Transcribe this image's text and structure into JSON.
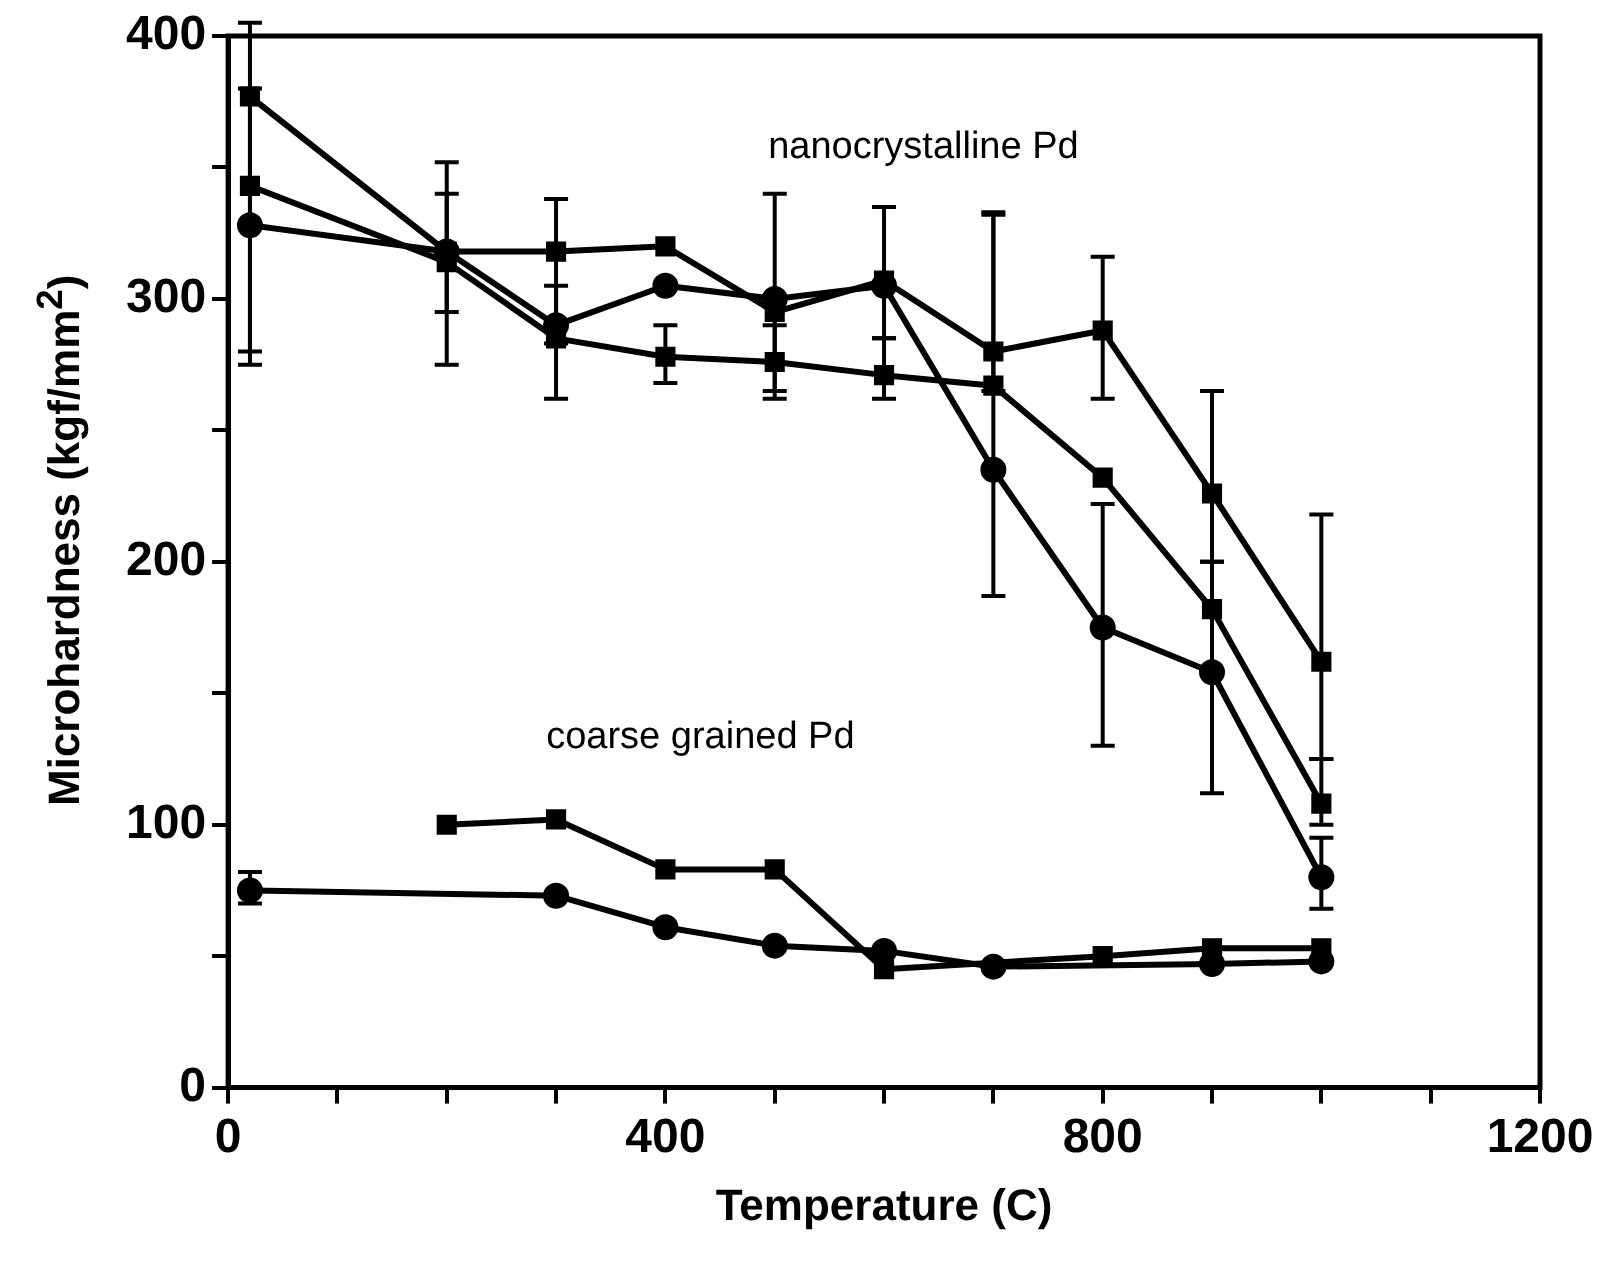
{
  "chart_data": {
    "type": "line",
    "xlabel": "Temperature (C)",
    "ylabel": "Microhardness (kgf/mm$^{2}$)",
    "xlim": [
      0,
      1200
    ],
    "xticks": [
      0,
      {
        "value": 100,
        "label": null
      },
      {
        "value": 200,
        "label": null
      },
      {
        "value": 300,
        "label": null
      },
      400,
      {
        "value": 500,
        "label": null
      },
      {
        "value": 600,
        "label": null
      },
      {
        "value": 700,
        "label": null
      },
      800,
      {
        "value": 900,
        "label": null
      },
      {
        "value": 1000,
        "label": null
      },
      {
        "value": 1100,
        "label": null
      },
      1200
    ],
    "ylim": [
      0,
      400
    ],
    "yticks": [
      0,
      {
        "value": 50,
        "label": null
      },
      100,
      {
        "value": 150,
        "label": null
      },
      200,
      {
        "value": 250,
        "label": null
      },
      300,
      {
        "value": 350,
        "label": null
      },
      400
    ],
    "grid": false,
    "legend": false,
    "line_style": "solid",
    "series": [
      {
        "color": "#000000",
        "marker": "square",
        "x": [
          20,
          200,
          300,
          400,
          500,
          600,
          700,
          800,
          900,
          1000
        ],
        "values": [
          377,
          318,
          318,
          320,
          295,
          307,
          280,
          288,
          226,
          162
        ],
        "errors": [
          [
            280,
            405
          ],
          [
            295,
            352
          ],
          [
            283,
            338
          ],
          null,
          [
            265,
            340
          ],
          [
            285,
            335
          ],
          [
            265,
            332
          ],
          [
            262,
            316
          ],
          [
            200,
            265
          ],
          [
            125,
            218
          ]
        ]
      },
      {
        "color": "#000000",
        "marker": "square",
        "x": [
          20,
          200,
          300,
          400,
          500,
          600,
          700,
          800,
          900,
          1000
        ],
        "values": [
          343,
          314,
          285,
          278,
          276,
          271,
          267,
          232,
          182,
          108
        ],
        "errors": [
          [
            275,
            380
          ],
          [
            275,
            340
          ],
          [
            262,
            305
          ],
          [
            268,
            290
          ],
          [
            262,
            290
          ],
          [
            262,
            285
          ],
          null,
          null,
          null,
          [
            100,
            125
          ]
        ]
      },
      {
        "color": "#000000",
        "marker": "circle",
        "x": [
          20,
          200,
          300,
          400,
          500,
          600,
          700,
          800,
          900,
          1000
        ],
        "values": [
          328,
          318,
          290,
          305,
          300,
          305,
          235,
          175,
          158,
          80
        ],
        "errors": [
          null,
          null,
          null,
          null,
          null,
          null,
          [
            187,
            333
          ],
          [
            130,
            222
          ],
          [
            112,
            200
          ],
          [
            68,
            95
          ]
        ]
      },
      {
        "color": "#000000",
        "marker": "square",
        "x": [
          200,
          300,
          400,
          500,
          600,
          800,
          900,
          1000
        ],
        "values": [
          100,
          102,
          83,
          83,
          45,
          50,
          53,
          53
        ]
      },
      {
        "color": "#000000",
        "marker": "circle",
        "x": [
          20,
          300,
          400,
          500,
          600,
          700,
          900,
          1000
        ],
        "values": [
          75,
          73,
          61,
          54,
          52,
          46,
          47,
          48
        ],
        "errors": [
          [
            70,
            82
          ],
          null,
          null,
          null,
          null,
          null,
          null,
          null
        ]
      }
    ],
    "annotations": [
      "nanocrystalline Pd",
      "coarse grained Pd"
    ]
  }
}
